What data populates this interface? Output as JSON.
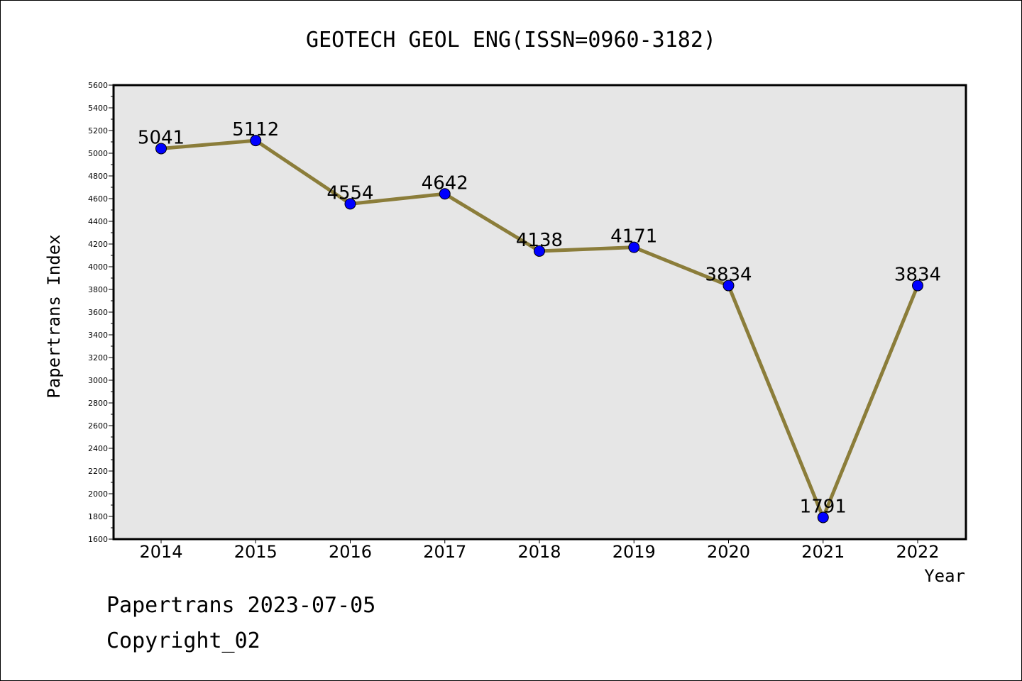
{
  "chart_data": {
    "type": "line",
    "title": "GEOTECH GEOL ENG(ISSN=0960-3182)",
    "xlabel": "Year",
    "ylabel": "Papertrans Index",
    "categories": [
      "2014",
      "2015",
      "2016",
      "2017",
      "2018",
      "2019",
      "2020",
      "2021",
      "2022"
    ],
    "series": [
      {
        "values": [
          5041,
          5112,
          4554,
          4642,
          4138,
          4171,
          3834,
          1791,
          3834
        ]
      }
    ],
    "data_labels": [
      "5041",
      "5112",
      "4554",
      "4642",
      "4138",
      "4171",
      "3834",
      "1791",
      "3834"
    ],
    "ylim": [
      1600,
      5600
    ],
    "y_major_ticks": [
      "1600",
      "1800",
      "2000",
      "2200",
      "2400",
      "2600",
      "2800",
      "3000",
      "3200",
      "3400",
      "3600",
      "3800",
      "4000",
      "4200",
      "4400",
      "4600",
      "4800",
      "5000",
      "5200",
      "5400",
      "5600"
    ],
    "grid": false,
    "legend": "none",
    "colors": {
      "line": "#8b7d3a",
      "marker": "#0000ff",
      "plot_background": "#e6e6e6",
      "page_background": "#ffffff"
    }
  },
  "footer": {
    "date_line": "Papertrans 2023-07-05",
    "copyright": "Copyright_02"
  }
}
